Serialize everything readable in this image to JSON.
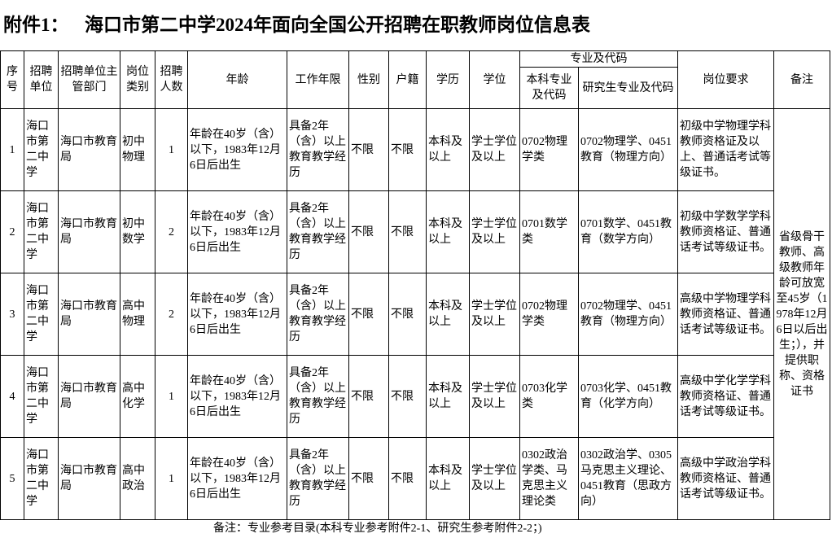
{
  "title": {
    "prefix": "附件1：",
    "main": "海口市第二中学2024年面向全国公开招聘在职教师岗位信息表"
  },
  "headers": {
    "seq": "序号",
    "unit": "招聘单位",
    "dept": "招聘单位主管部门",
    "type": "岗位类别",
    "count": "招聘人数",
    "age": "年龄",
    "years": "工作年限",
    "gender": "性别",
    "huji": "户籍",
    "edu": "学历",
    "degree": "学位",
    "major_group": "专业及代码",
    "major_ug": "本科专业及代码",
    "major_pg": "研究生专业及代码",
    "req": "岗位要求",
    "note": "备注"
  },
  "rows": [
    {
      "seq": "1",
      "unit": "海口市第二中学",
      "dept": "海口市教育局",
      "type": "初中物理",
      "count": "1",
      "age": "年龄在40岁（含）以下，1983年12月6日后出生",
      "years": "具备2年（含）以上教育教学经历",
      "gender": "不限",
      "huji": "不限",
      "edu": "本科及以上",
      "degree": "学士学位及以上",
      "major_ug": "0702物理学类",
      "major_pg": "0702物理学、0451教育（物理方向）",
      "req": "初级中学物理学科教师资格证及以上、普通话考试等级证书。"
    },
    {
      "seq": "2",
      "unit": "海口市第二中学",
      "dept": "海口市教育局",
      "type": "初中数学",
      "count": "2",
      "age": "年龄在40岁（含）以下，1983年12月6日后出生",
      "years": "具备2年（含）以上教育教学经历",
      "gender": "不限",
      "huji": "不限",
      "edu": "本科及以上",
      "degree": "学士学位及以上",
      "major_ug": "0701数学类",
      "major_pg": "0701数学、0451教育（数学方向）",
      "req": "初级中学数学学科教师资格证、普通话考试等级证书。"
    },
    {
      "seq": "3",
      "unit": "海口市第二中学",
      "dept": "海口市教育局",
      "type": "高中物理",
      "count": "2",
      "age": "年龄在40岁（含）以下，1983年12月6日后出生",
      "years": "具备2年（含）以上教育教学经历",
      "gender": "不限",
      "huji": "不限",
      "edu": "本科及以上",
      "degree": "学士学位及以上",
      "major_ug": "0702物理学类",
      "major_pg": "0702物理学、0451教育（物理方向）",
      "req": "高级中学物理学科教师资格证、普通话考试等级证书。"
    },
    {
      "seq": "4",
      "unit": "海口市第二中学",
      "dept": "海口市教育局",
      "type": "高中化学",
      "count": "1",
      "age": "年龄在40岁（含）以下，1983年12月6日后出生",
      "years": "具备2年（含）以上教育教学经历",
      "gender": "不限",
      "huji": "不限",
      "edu": "本科及以上",
      "degree": "学士学位及以上",
      "major_ug": "0703化学类",
      "major_pg": "0703化学、0451教育（化学方向）",
      "req": "高级中学化学学科教师资格证、普通话考试等级证书。"
    },
    {
      "seq": "5",
      "unit": "海口市第二中学",
      "dept": "海口市教育局",
      "type": "高中政治",
      "count": "1",
      "age": "年龄在40岁（含）以下，1983年12月6日后出生",
      "years": "具备2年（含）以上教育教学经历",
      "gender": "不限",
      "huji": "不限",
      "edu": "本科及以上",
      "degree": "学士学位及以上",
      "major_ug": "0302政治学类、马克思主义理论类",
      "major_pg": "0302政治学、0305马克思主义理论、0451教育（思政方向）",
      "req": "高级中学政治学科教师资格证、普通话考试等级证书。"
    }
  ],
  "note": "省级骨干教师、高级教师年龄可放宽至45岁（1978年12月6日以后出生；），并提供职称、资格证书",
  "footer": "备注：专业参考目录(本科专业参考附件2-1、研究生参考附件2-2；)"
}
